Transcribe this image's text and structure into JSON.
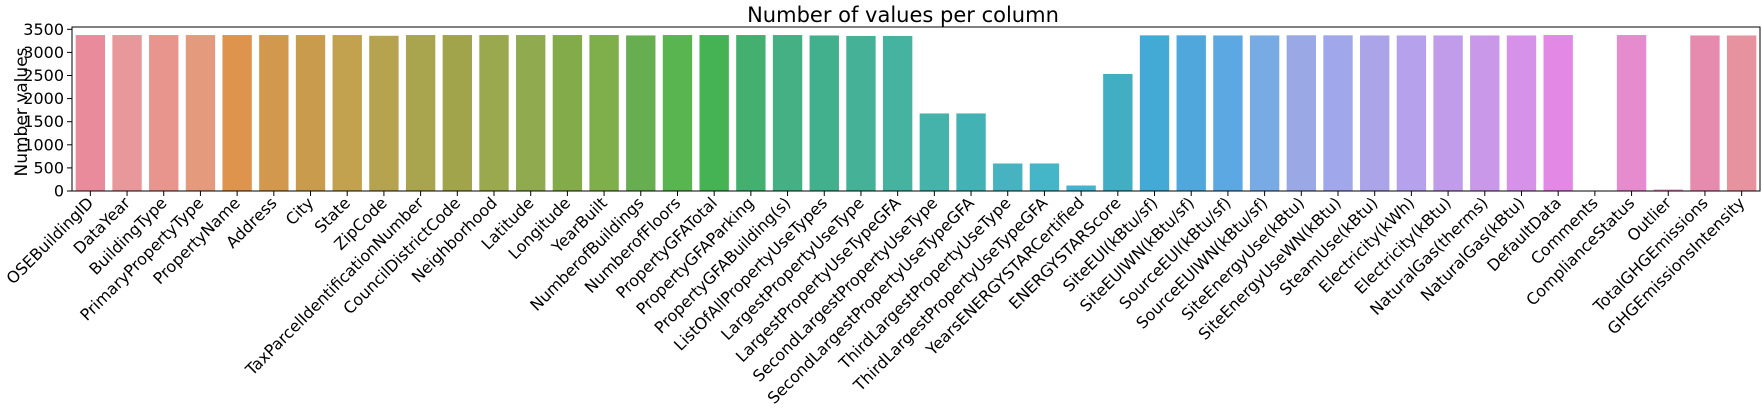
{
  "chart_data": {
    "type": "bar",
    "title": "Number of values per column",
    "xlabel": "",
    "ylabel": "Number values",
    "ylim": [
      0,
      3550
    ],
    "yticks": [
      0,
      500,
      1000,
      1500,
      2000,
      2500,
      3000,
      3500
    ],
    "grid": false,
    "legend": "none",
    "categories": [
      "OSEBuildingID",
      "DataYear",
      "BuildingType",
      "PrimaryPropertyType",
      "PropertyName",
      "Address",
      "City",
      "State",
      "ZipCode",
      "TaxParcelIdentificationNumber",
      "CouncilDistrictCode",
      "Neighborhood",
      "Latitude",
      "Longitude",
      "YearBuilt",
      "NumberofBuildings",
      "NumberofFloors",
      "PropertyGFATotal",
      "PropertyGFAParking",
      "PropertyGFABuilding(s)",
      "ListOfAllPropertyUseTypes",
      "LargestPropertyUseType",
      "LargestPropertyUseTypeGFA",
      "SecondLargestPropertyUseType",
      "SecondLargestPropertyUseTypeGFA",
      "ThirdLargestPropertyUseType",
      "ThirdLargestPropertyUseTypeGFA",
      "YearsENERGYSTARCertified",
      "ENERGYSTARScore",
      "SiteEUI(kBtu/sf)",
      "SiteEUIWN(kBtu/sf)",
      "SourceEUI(kBtu/sf)",
      "SourceEUIWN(kBtu/sf)",
      "SiteEnergyUse(kBtu)",
      "SiteEnergyUseWN(kBtu)",
      "SteamUse(kBtu)",
      "Electricity(kWh)",
      "Electricity(kBtu)",
      "NaturalGas(therms)",
      "NaturalGas(kBtu)",
      "DefaultData",
      "Comments",
      "ComplianceStatus",
      "Outlier",
      "TotalGHGEmissions",
      "GHGEmissionsIntensity"
    ],
    "values": [
      3376,
      3376,
      3376,
      3376,
      3376,
      3376,
      3376,
      3376,
      3360,
      3376,
      3376,
      3376,
      3376,
      3376,
      3376,
      3368,
      3376,
      3376,
      3376,
      3376,
      3367,
      3356,
      3356,
      1679,
      1679,
      596,
      596,
      119,
      2533,
      3369,
      3370,
      3367,
      3367,
      3371,
      3370,
      3367,
      3367,
      3367,
      3367,
      3367,
      3376,
      0,
      3376,
      32,
      3367,
      3367
    ],
    "colors": [
      "#e98b9a",
      "#e8979a",
      "#e8958d",
      "#e49a7c",
      "#df944e",
      "#d2994e",
      "#c99c4d",
      "#c2a24f",
      "#b5a34f",
      "#a9a54f",
      "#a2a44c",
      "#9aa84e",
      "#90aa50",
      "#84ab4a",
      "#7eaf4a",
      "#66ae50",
      "#58b54f",
      "#45b353",
      "#43b070",
      "#44b083",
      "#42b08c",
      "#45b196",
      "#45b39f",
      "#46b3aa",
      "#43b2b4",
      "#47b3c0",
      "#44b6c8",
      "#44b3ce",
      "#42aec3",
      "#43aad6",
      "#4fa7db",
      "#5ca8e2",
      "#78aae3",
      "#9aa9e6",
      "#a0a7ea",
      "#aca4e9",
      "#b6a2ec",
      "#c09cea",
      "#c998e8",
      "#d692e8",
      "#e388e4",
      "#e88bdd",
      "#e68bce",
      "#e68ac0",
      "#e78bae",
      "#e7929f"
    ]
  }
}
